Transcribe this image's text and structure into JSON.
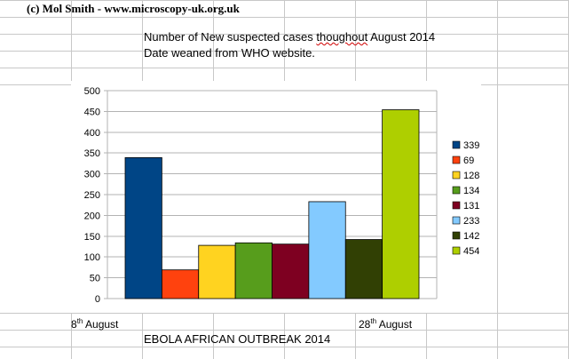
{
  "header": {
    "copyright": "(c) Mol Smith - www.microscopy-uk.org.uk",
    "note_line1_pre": "Number of New suspected cases ",
    "note_line1_misspelled": "thoughout",
    "note_line1_post": " August 2014",
    "note_line2": "Date weaned from WHO website."
  },
  "x_axis_labels": {
    "start_day": "8",
    "start_sup": "th",
    "start_month": " August",
    "end_day": "28",
    "end_sup": "th",
    "end_month": " August"
  },
  "footer": {
    "subtitle": "EBOLA AFRICAN OUTBREAK 2014"
  },
  "chart_data": {
    "type": "bar",
    "title": "",
    "xlabel": "",
    "ylabel": "",
    "ylim": [
      0,
      500
    ],
    "yticks": [
      0,
      50,
      100,
      150,
      200,
      250,
      300,
      350,
      400,
      450,
      500
    ],
    "grid": true,
    "legend_position": "right",
    "series": [
      {
        "name": "339",
        "value": 339,
        "color": "#004586"
      },
      {
        "name": "69",
        "value": 69,
        "color": "#ff420e"
      },
      {
        "name": "128",
        "value": 128,
        "color": "#ffd320"
      },
      {
        "name": "134",
        "value": 134,
        "color": "#579d1c"
      },
      {
        "name": "131",
        "value": 131,
        "color": "#7e0021"
      },
      {
        "name": "233",
        "value": 233,
        "color": "#83caff"
      },
      {
        "name": "142",
        "value": 142,
        "color": "#314004"
      },
      {
        "name": "454",
        "value": 454,
        "color": "#aecf00"
      }
    ]
  }
}
